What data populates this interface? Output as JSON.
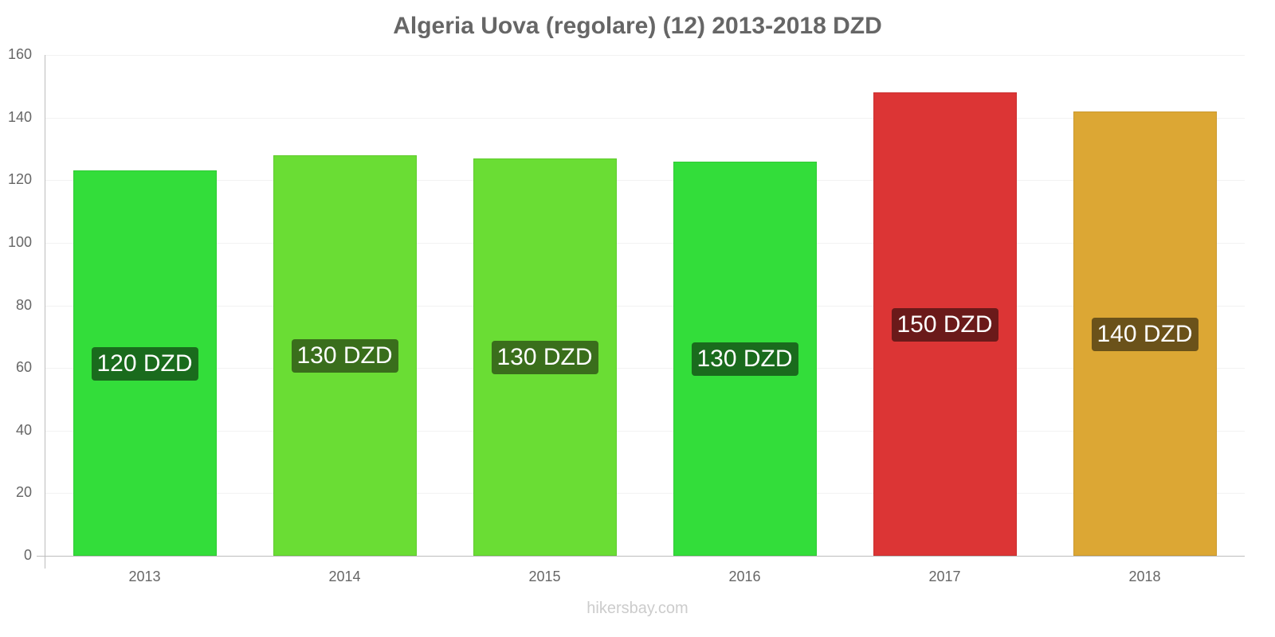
{
  "chart_data": {
    "type": "bar",
    "title": "Algeria Uova (regolare) (12) 2013-2018 DZD",
    "xlabel": "",
    "ylabel": "",
    "ylim": [
      0,
      160
    ],
    "yticks": [
      0,
      20,
      40,
      60,
      80,
      100,
      120,
      140,
      160
    ],
    "grid": true,
    "categories": [
      "2013",
      "2014",
      "2015",
      "2016",
      "2017",
      "2018"
    ],
    "values": [
      123,
      128,
      127,
      126,
      148,
      142
    ],
    "data_labels": [
      "120 DZD",
      "130 DZD",
      "130 DZD",
      "130 DZD",
      "150 DZD",
      "140 DZD"
    ],
    "bar_colors": [
      "#33dd3a",
      "#6add34",
      "#6add34",
      "#33dd3a",
      "#dc3535",
      "#dca734"
    ],
    "label_colors": [
      "#1a6b1d",
      "#3a6e1c",
      "#3a6e1c",
      "#1a6b1d",
      "#6b1a1a",
      "#6b521a"
    ]
  },
  "watermark": "hikersbay.com"
}
